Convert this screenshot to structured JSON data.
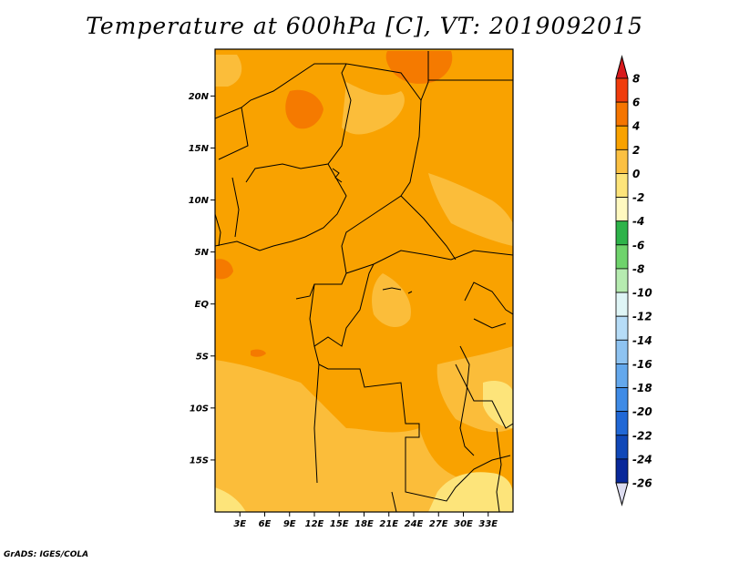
{
  "title": "Temperature at 600hPa [C], VT: 2019092015",
  "credit": "GrADS: IGES/COLA",
  "map": {
    "lon_range": [
      0,
      36
    ],
    "lat_range": [
      -20,
      24.5
    ],
    "lon_ticks": [
      {
        "value": 3,
        "label": "3E"
      },
      {
        "value": 6,
        "label": "6E"
      },
      {
        "value": 9,
        "label": "9E"
      },
      {
        "value": 12,
        "label": "12E"
      },
      {
        "value": 15,
        "label": "15E"
      },
      {
        "value": 18,
        "label": "18E"
      },
      {
        "value": 21,
        "label": "21E"
      },
      {
        "value": 24,
        "label": "24E"
      },
      {
        "value": 27,
        "label": "27E"
      },
      {
        "value": 30,
        "label": "30E"
      },
      {
        "value": 33,
        "label": "33E"
      }
    ],
    "lat_ticks": [
      {
        "value": 20,
        "label": "20N"
      },
      {
        "value": 15,
        "label": "15N"
      },
      {
        "value": 10,
        "label": "10N"
      },
      {
        "value": 5,
        "label": "5N"
      },
      {
        "value": 0,
        "label": "EQ"
      },
      {
        "value": -5,
        "label": "5S"
      },
      {
        "value": -10,
        "label": "10S"
      },
      {
        "value": -15,
        "label": "15S"
      }
    ],
    "colors": {
      "base": "#f9a200",
      "warm_2_4": "#f8a000",
      "cool_0_2": "#fbbd3a",
      "cold_m2_0": "#fde47a",
      "hot_4_6": "#f57a00",
      "border": "#000000"
    }
  },
  "colorbar": {
    "levels": [
      "8",
      "6",
      "4",
      "2",
      "0",
      "-2",
      "-4",
      "-6",
      "-8",
      "-10",
      "-12",
      "-14",
      "-16",
      "-18",
      "-20",
      "-22",
      "-24",
      "-26"
    ],
    "colors": [
      "#d7191c",
      "#f03c0c",
      "#f57500",
      "#f9a200",
      "#fbc042",
      "#fde47a",
      "#fff9c0",
      "#2eb34a",
      "#6fd36c",
      "#b6ebb0",
      "#dff5f6",
      "#b6dcf7",
      "#8ec3f1",
      "#64a8ec",
      "#3f8be6",
      "#2168d6",
      "#1048b8",
      "#08289a",
      "#0a0a6e",
      "#dcdcf0"
    ]
  }
}
